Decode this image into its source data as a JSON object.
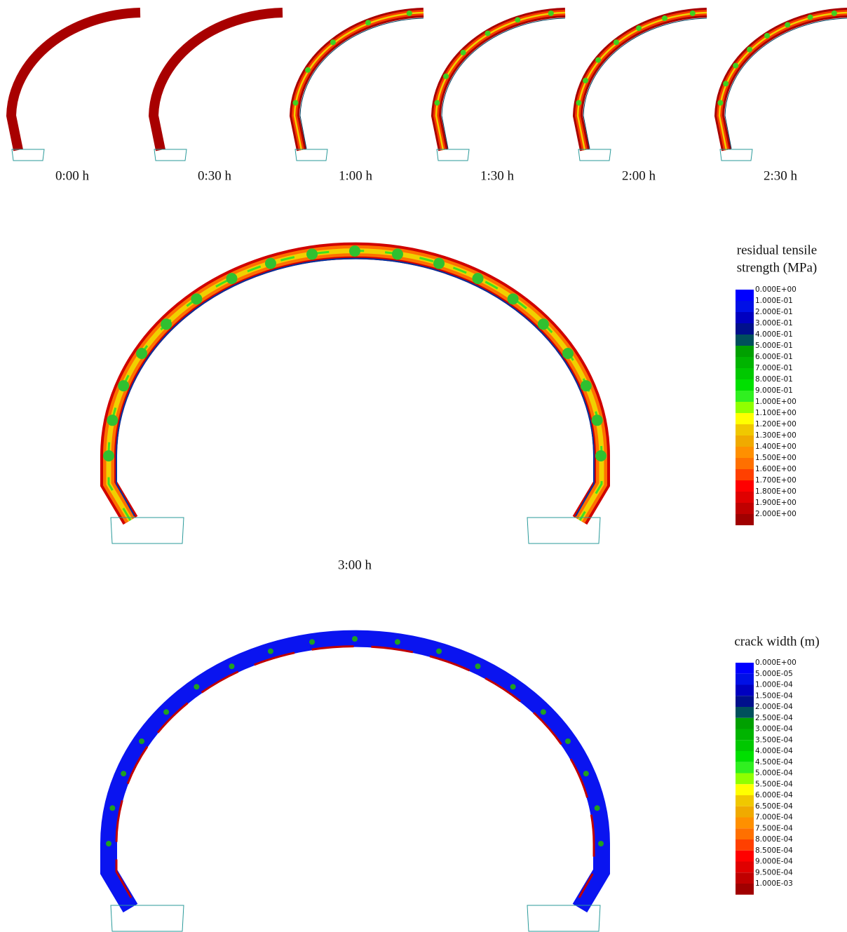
{
  "snapshots": [
    {
      "label": "0:00 h"
    },
    {
      "label": "0:30 h"
    },
    {
      "label": "1:00 h"
    },
    {
      "label": "1:30 h"
    },
    {
      "label": "2:00 h"
    },
    {
      "label": "2:30 h"
    }
  ],
  "main_panel": {
    "label": "3:00 h",
    "legend": {
      "title_lines": [
        "residual tensile",
        "strength (MPa)"
      ],
      "entries": [
        {
          "label": "0.000E+00",
          "color": "#0000ff"
        },
        {
          "label": "1.000E-01",
          "color": "#0010e6"
        },
        {
          "label": "2.000E-01",
          "color": "#0000c0"
        },
        {
          "label": "3.000E-01",
          "color": "#00108c"
        },
        {
          "label": "4.000E-01",
          "color": "#00505c"
        },
        {
          "label": "5.000E-01",
          "color": "#00a000"
        },
        {
          "label": "6.000E-01",
          "color": "#00b400"
        },
        {
          "label": "7.000E-01",
          "color": "#00c800"
        },
        {
          "label": "8.000E-01",
          "color": "#00e000"
        },
        {
          "label": "9.000E-01",
          "color": "#30f020"
        },
        {
          "label": "1.000E+00",
          "color": "#90ff00"
        },
        {
          "label": "1.100E+00",
          "color": "#ffff00"
        },
        {
          "label": "1.200E+00",
          "color": "#f0c800"
        },
        {
          "label": "1.300E+00",
          "color": "#f0aa00"
        },
        {
          "label": "1.400E+00",
          "color": "#ff9000"
        },
        {
          "label": "1.500E+00",
          "color": "#ff7000"
        },
        {
          "label": "1.600E+00",
          "color": "#ff4000"
        },
        {
          "label": "1.700E+00",
          "color": "#ff0000"
        },
        {
          "label": "1.800E+00",
          "color": "#e00000"
        },
        {
          "label": "1.900E+00",
          "color": "#c00000"
        },
        {
          "label": "2.000E+00",
          "color": "#a00000"
        }
      ]
    }
  },
  "crack_panel": {
    "legend": {
      "title_lines": [
        "crack width (m)"
      ],
      "entries": [
        {
          "label": "0.000E+00",
          "color": "#0000ff"
        },
        {
          "label": "5.000E-05",
          "color": "#0010e6"
        },
        {
          "label": "1.000E-04",
          "color": "#0000c0"
        },
        {
          "label": "1.500E-04",
          "color": "#00108c"
        },
        {
          "label": "2.000E-04",
          "color": "#00505c"
        },
        {
          "label": "2.500E-04",
          "color": "#00a000"
        },
        {
          "label": "3.000E-04",
          "color": "#00b400"
        },
        {
          "label": "3.500E-04",
          "color": "#00c800"
        },
        {
          "label": "4.000E-04",
          "color": "#00e000"
        },
        {
          "label": "4.500E-04",
          "color": "#30f020"
        },
        {
          "label": "5.000E-04",
          "color": "#90ff00"
        },
        {
          "label": "5.500E-04",
          "color": "#ffff00"
        },
        {
          "label": "6.000E-04",
          "color": "#f0c800"
        },
        {
          "label": "6.500E-04",
          "color": "#f0aa00"
        },
        {
          "label": "7.000E-04",
          "color": "#ff9000"
        },
        {
          "label": "7.500E-04",
          "color": "#ff7000"
        },
        {
          "label": "8.000E-04",
          "color": "#ff4000"
        },
        {
          "label": "8.500E-04",
          "color": "#ff0000"
        },
        {
          "label": "9.000E-04",
          "color": "#e00000"
        },
        {
          "label": "9.500E-04",
          "color": "#c00000"
        },
        {
          "label": "1.000E-03",
          "color": "#a00000"
        }
      ]
    }
  }
}
